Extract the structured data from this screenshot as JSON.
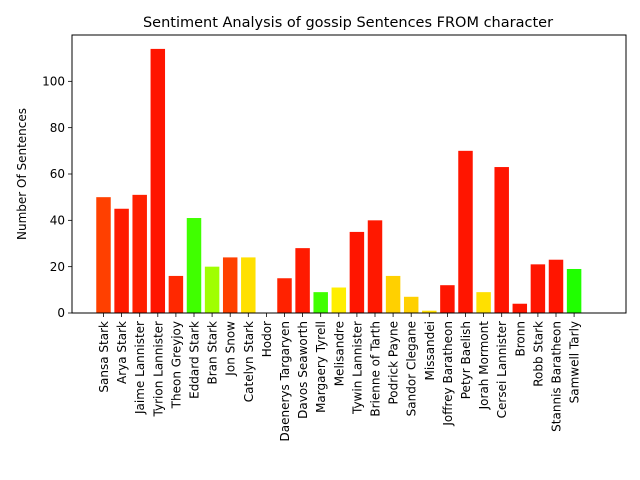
{
  "chart_data": {
    "type": "bar",
    "title": "Sentiment Analysis of gossip Sentences FROM character",
    "xlabel": "",
    "ylabel": "Number Of Sentences",
    "ylim": [
      0,
      120
    ],
    "yticks": [
      0,
      20,
      40,
      60,
      80,
      100
    ],
    "grid": false,
    "legend": "none",
    "categories": [
      "Sansa Stark",
      "Arya Stark",
      "Jaime Lannister",
      "Tyrion Lannister",
      "Theon Greyjoy",
      "Eddard Stark",
      "Bran Stark",
      "Jon Snow",
      "Catelyn Stark",
      "Hodor",
      "Daenerys Targaryen",
      "Davos Seaworth",
      "Margaery Tyrell",
      "Melisandre",
      "Tywin Lannister",
      "Brienne of Tarth",
      "Podrick Payne",
      "Sandor Clegane",
      "Missandei",
      "Joffrey Baratheon",
      "Petyr Baelish",
      "Jorah Mormont",
      "Cersei Lannister",
      "Bronn",
      "Robb Stark",
      "Stannis Baratheon",
      "Samwell Tarly"
    ],
    "values": [
      50,
      45,
      51,
      114,
      16,
      41,
      20,
      24,
      24,
      0,
      15,
      28,
      9,
      11,
      35,
      40,
      16,
      7,
      1,
      12,
      70,
      9,
      63,
      4,
      21,
      23,
      19
    ],
    "colors": [
      "#ff4000",
      "#ff1a00",
      "#ff2000",
      "#ff1500",
      "#ff2800",
      "#40ff00",
      "#a0ff00",
      "#ff4000",
      "#ffe000",
      "#ff0000",
      "#ff2200",
      "#ff1a00",
      "#40ff00",
      "#ffee00",
      "#ff1500",
      "#ff1800",
      "#ffd000",
      "#ffd000",
      "#ffe000",
      "#ff1500",
      "#ff1500",
      "#ffe000",
      "#ff1500",
      "#ff1500",
      "#ff1500",
      "#ff1500",
      "#20ff00"
    ]
  }
}
